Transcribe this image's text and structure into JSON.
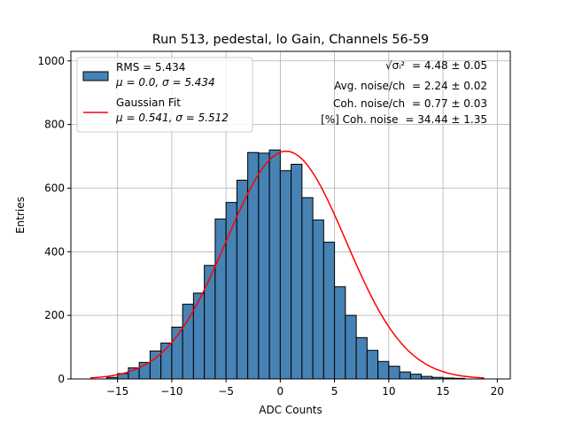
{
  "chart_data": {
    "type": "bar",
    "title": "Run 513, pedestal, lo Gain, Channels 56-59",
    "xlabel": "ADC Counts",
    "ylabel": "Entries",
    "xlim": [
      -19.3,
      21.2
    ],
    "ylim": [
      0,
      1030
    ],
    "xticks": [
      -15,
      -10,
      -5,
      0,
      5,
      10,
      15,
      20
    ],
    "xtick_labels": [
      "−15",
      "−10",
      "−5",
      "0",
      "5",
      "10",
      "15",
      "20"
    ],
    "yticks": [
      0,
      200,
      400,
      600,
      800,
      1000
    ],
    "ytick_labels": [
      "0",
      "200",
      "400",
      "600",
      "800",
      "1000"
    ],
    "grid": true,
    "bin_width": 1,
    "bin_left_edges": [
      -16,
      -15,
      -14,
      -13,
      -12,
      -11,
      -10,
      -9,
      -8,
      -7,
      -6,
      -5,
      -4,
      -3,
      -2,
      -1,
      0,
      1,
      2,
      3,
      4,
      5,
      6,
      7,
      8,
      9,
      10,
      11,
      12,
      13,
      14,
      15,
      16
    ],
    "series": [
      {
        "name": "RMS = 5.434\nμ = 0.0, σ = 5.434",
        "kind": "histogram",
        "color": "#4682b4",
        "edgecolor": "#000000",
        "values": [
          5,
          17,
          35,
          52,
          88,
          113,
          163,
          235,
          270,
          357,
          503,
          555,
          625,
          712,
          710,
          720,
          655,
          675,
          570,
          500,
          430,
          290,
          200,
          130,
          90,
          55,
          40,
          22,
          15,
          8,
          5,
          3,
          2
        ]
      },
      {
        "name": "Gaussian Fit\nμ = 0.541, σ = 5.512",
        "kind": "fit",
        "color": "#ff0000",
        "mu": 0.541,
        "sigma": 5.512,
        "amplitude": 716,
        "x_range": [
          -17.5,
          18.8
        ]
      }
    ],
    "legend": {
      "position": "top-left",
      "entries": [
        {
          "line1": "RMS = 5.434",
          "line2": "μ = 0.0, σ = 5.434"
        },
        {
          "line1": "Gaussian Fit",
          "line2": "μ = 0.541, σ = 5.512"
        }
      ]
    },
    "annotations": {
      "position": "top-right",
      "lines": [
        {
          "label": "√σᵢ²",
          "value": "= 4.48 ± 0.05"
        },
        {
          "label": "Avg. noise/ch",
          "value": "= 2.24 ± 0.02"
        },
        {
          "label": "Coh. noise/ch",
          "value": "= 0.77 ± 0.03"
        },
        {
          "label": "[%] Coh. noise",
          "value": "= 34.44 ± 1.35"
        }
      ]
    }
  }
}
